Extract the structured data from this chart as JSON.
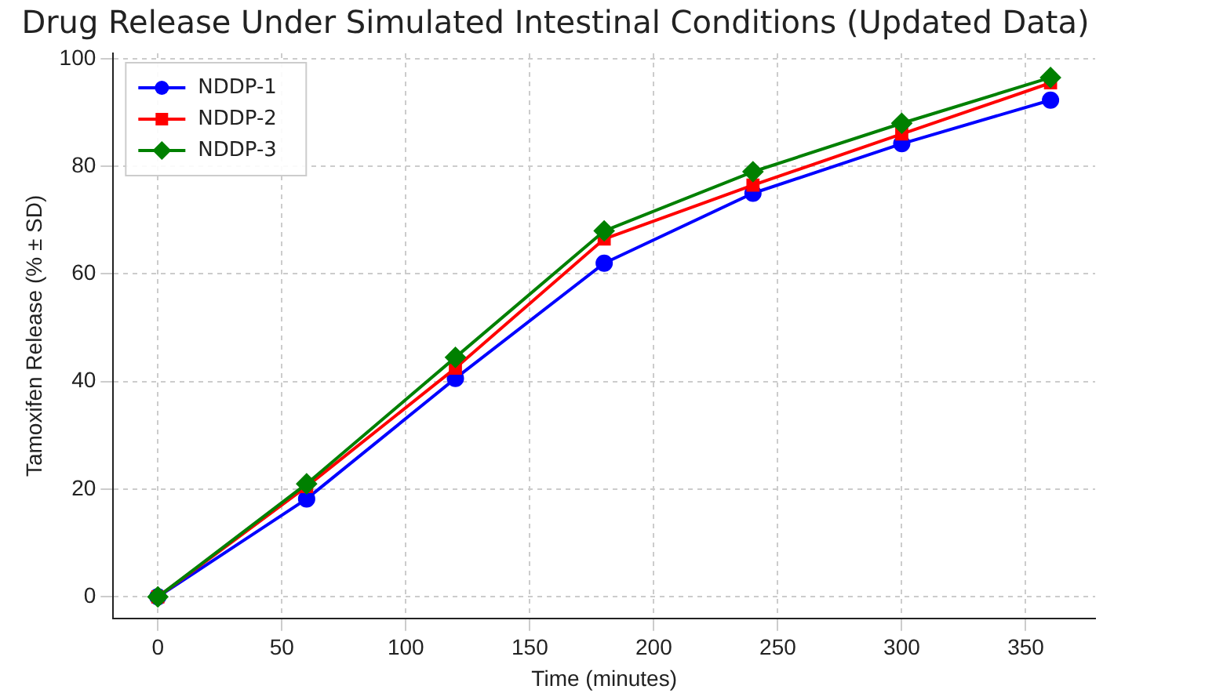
{
  "chart_data": {
    "type": "line",
    "title": "Drug Release Under Simulated Intestinal Conditions (Updated Data)",
    "xlabel": "Time (minutes)",
    "ylabel": "Tamoxifen Release (% ± SD)",
    "x": [
      0,
      60,
      120,
      180,
      240,
      300,
      360
    ],
    "series": [
      {
        "name": "NDDP-1",
        "color": "#0000ff",
        "marker": "circle",
        "values": [
          0,
          18.2,
          40.6,
          62,
          75,
          84.2,
          92.3
        ]
      },
      {
        "name": "NDDP-2",
        "color": "#ff0000",
        "marker": "square",
        "values": [
          0,
          20.5,
          42.5,
          66.5,
          76.5,
          86,
          95.5
        ]
      },
      {
        "name": "NDDP-3",
        "color": "#008000",
        "marker": "diamond",
        "values": [
          0,
          21,
          44.5,
          68,
          79,
          88,
          96.5
        ]
      }
    ],
    "xlim": [
      -18,
      378
    ],
    "xticks": [
      0,
      50,
      100,
      150,
      200,
      250,
      300,
      350
    ],
    "ylim": [
      -4,
      101
    ],
    "yticks": [
      0,
      20,
      40,
      60,
      80,
      100
    ],
    "grid": true,
    "legend": "top left",
    "line_style": "solid"
  }
}
